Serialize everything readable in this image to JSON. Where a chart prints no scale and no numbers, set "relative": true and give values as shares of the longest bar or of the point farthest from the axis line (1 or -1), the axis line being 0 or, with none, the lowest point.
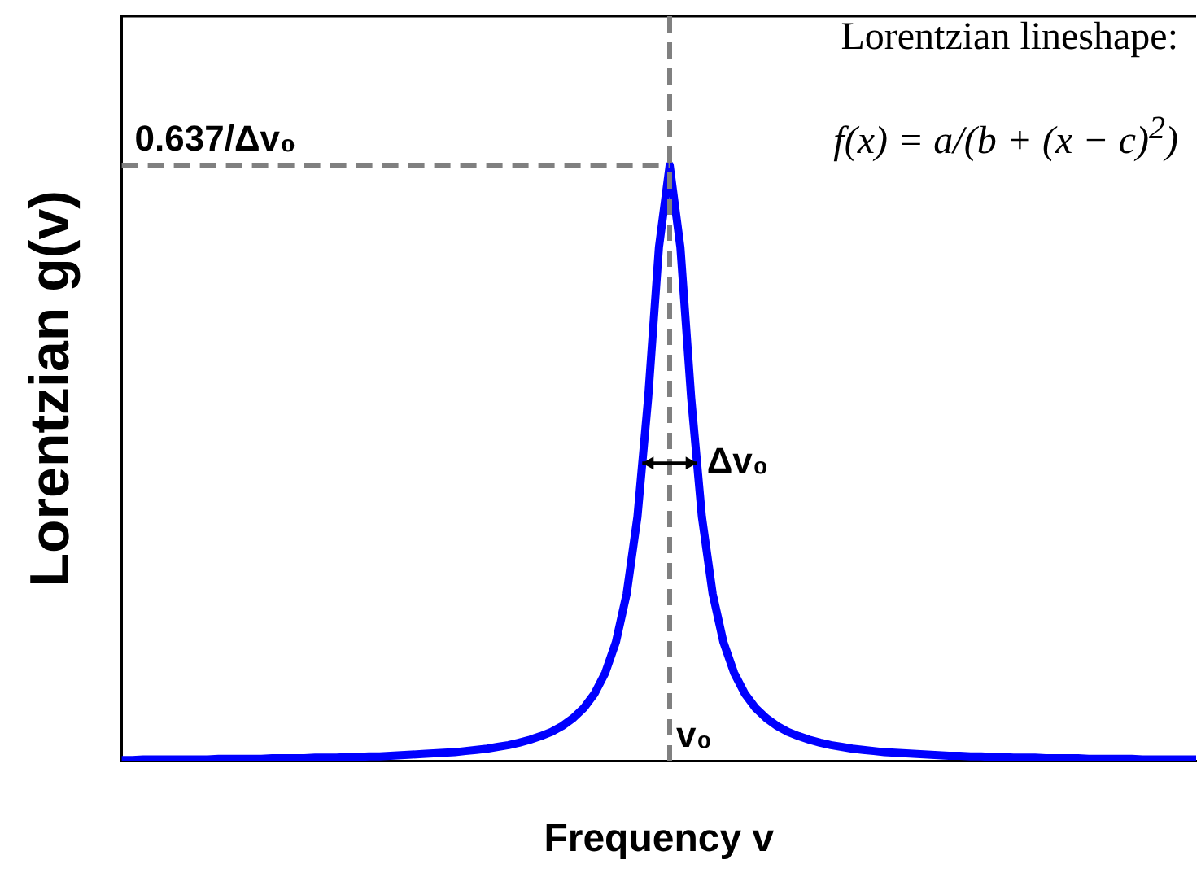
{
  "chart_data": {
    "type": "line",
    "relative": true,
    "xlabel": "Frequency v",
    "ylabel": "Lorentzian g(v)",
    "categories": [
      null,
      null,
      null,
      null,
      null,
      null,
      null,
      null,
      null,
      null,
      null,
      null,
      null,
      null,
      null,
      null,
      null,
      null,
      null,
      null,
      null,
      null,
      null,
      null,
      null,
      null,
      null,
      null,
      null,
      null,
      null,
      null,
      null,
      null,
      null,
      null,
      null,
      null,
      null,
      null,
      null,
      null,
      null,
      null,
      null,
      null,
      null,
      null,
      null,
      null,
      null,
      null,
      null,
      null,
      null,
      null,
      null,
      null,
      null,
      null,
      null,
      null,
      null,
      null,
      null,
      null,
      null,
      null,
      null,
      null,
      null,
      null,
      null,
      null,
      null,
      null,
      null,
      null,
      null,
      null,
      null,
      null,
      null,
      null,
      null,
      null,
      null,
      null,
      null,
      null,
      null,
      null,
      null,
      null,
      null,
      null,
      null,
      null,
      null,
      null,
      null
    ],
    "series": [
      {
        "color": "#0000ff",
        "values": [
          0.002,
          0.002,
          0.003,
          0.003,
          0.003,
          0.003,
          0.003,
          0.003,
          0.003,
          0.004,
          0.004,
          0.004,
          0.004,
          0.004,
          0.005,
          0.005,
          0.005,
          0.005,
          0.006,
          0.006,
          0.006,
          0.007,
          0.007,
          0.008,
          0.008,
          0.009,
          0.01,
          0.011,
          0.012,
          0.013,
          0.014,
          0.015,
          0.017,
          0.019,
          0.021,
          0.024,
          0.027,
          0.031,
          0.036,
          0.042,
          0.049,
          0.059,
          0.072,
          0.089,
          0.113,
          0.148,
          0.2,
          0.281,
          0.41,
          0.61,
          0.862,
          1,
          0.862,
          0.61,
          0.41,
          0.281,
          0.2,
          0.148,
          0.113,
          0.089,
          0.072,
          0.059,
          0.049,
          0.042,
          0.036,
          0.031,
          0.027,
          0.024,
          0.021,
          0.019,
          0.017,
          0.015,
          0.014,
          0.013,
          0.012,
          0.011,
          0.01,
          0.009,
          0.009,
          0.008,
          0.008,
          0.007,
          0.007,
          0.006,
          0.006,
          0.006,
          0.005,
          0.005,
          0.005,
          0.005,
          0.004,
          0.004,
          0.004,
          0.004,
          0.004,
          0.003,
          0.003,
          0.003,
          0.003,
          0.003,
          0.003
        ]
      }
    ],
    "ref_lines": [
      {
        "axis": "y",
        "value": 1,
        "label": "0.637/Δv₀",
        "color": "#808080",
        "line_style": "dashed"
      }
    ],
    "annotations": [
      "Lorentzian lineshape:",
      "f(x) = a/(b + (x − c)$^{2}$)",
      "Δv₀",
      "v₀"
    ],
    "legend": false,
    "grid": false,
    "marker": "none",
    "line_style": "solid"
  }
}
